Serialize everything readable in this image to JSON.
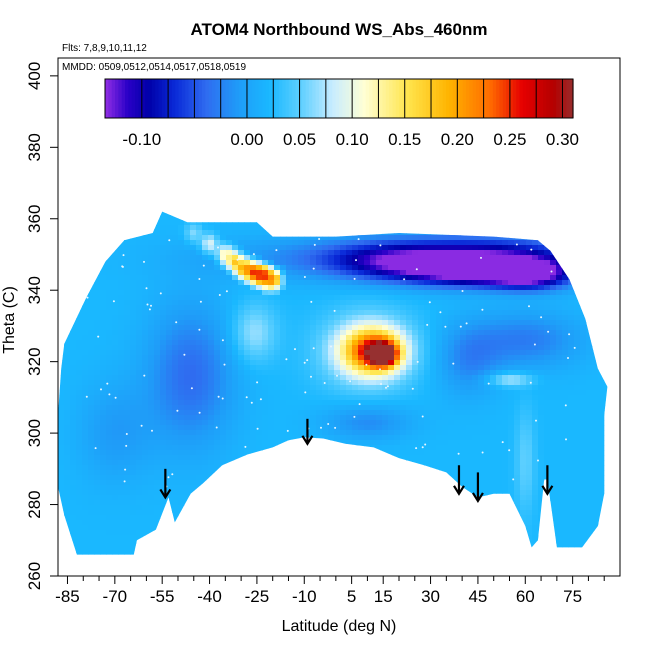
{
  "chart_data": {
    "type": "heatmap",
    "title": "ATOM4 Northbound WS_Abs_460nm",
    "annotations": {
      "flights": "Flts: 7,8,9,10,11,12",
      "dates": "MMDD: 0509,0512,0514,0517,0518,0519"
    },
    "xlabel": "Latitude (deg N)",
    "ylabel": "Theta (C)",
    "xlim": [
      -88,
      90
    ],
    "ylim": [
      260,
      405
    ],
    "x_ticks": [
      -85,
      -70,
      -55,
      -40,
      -25,
      -10,
      5,
      15,
      30,
      45,
      60,
      75
    ],
    "x_minor_ticks": [
      -80,
      -75,
      -65,
      -60,
      -50,
      -45,
      -35,
      -30,
      -20,
      -15,
      -5,
      0,
      10,
      20,
      25,
      35,
      40,
      50,
      55,
      65,
      70,
      80,
      85
    ],
    "y_ticks": [
      260,
      280,
      300,
      320,
      340,
      360,
      380,
      400
    ],
    "grid": false,
    "colorbar": {
      "range": [
        -0.135,
        0.31
      ],
      "ticks": [
        -0.1,
        0.0,
        0.05,
        0.1,
        0.15,
        0.2,
        0.25,
        0.3
      ],
      "tick_labels": [
        "-0.10",
        "0.00",
        "0.05",
        "0.10",
        "0.15",
        "0.20",
        "0.25",
        "0.30"
      ],
      "stops": [
        {
          "v": -0.135,
          "color": "#8a2be2"
        },
        {
          "v": -0.115,
          "color": "#2a00c8"
        },
        {
          "v": -0.095,
          "color": "#0000a8"
        },
        {
          "v": -0.07,
          "color": "#0a2ad8"
        },
        {
          "v": -0.04,
          "color": "#2f6cf0"
        },
        {
          "v": -0.01,
          "color": "#1f9cf8"
        },
        {
          "v": 0.02,
          "color": "#1ab8ff"
        },
        {
          "v": 0.05,
          "color": "#5fd0ff"
        },
        {
          "v": 0.08,
          "color": "#c8ecff"
        },
        {
          "v": 0.11,
          "color": "#ffffd4"
        },
        {
          "v": 0.15,
          "color": "#ffe650"
        },
        {
          "v": 0.19,
          "color": "#ffb400"
        },
        {
          "v": 0.23,
          "color": "#ff6a00"
        },
        {
          "v": 0.26,
          "color": "#e60000"
        },
        {
          "v": 0.29,
          "color": "#b40000"
        },
        {
          "v": 0.31,
          "color": "#963030"
        }
      ]
    },
    "field": {
      "background_value": 0.02,
      "anomalies": [
        {
          "lat": -46,
          "theta": 316,
          "value": -0.04,
          "rlat": 14,
          "rtheta": 20
        },
        {
          "lat": -70,
          "theta": 300,
          "value": -0.01,
          "rlat": 12,
          "rtheta": 14
        },
        {
          "lat": 25,
          "theta": 349,
          "value": -0.05,
          "rlat": 55,
          "rtheta": 6
        },
        {
          "lat": 50,
          "theta": 349,
          "value": -0.06,
          "rlat": 28,
          "rtheta": 6
        },
        {
          "lat": 45,
          "theta": 345,
          "value": -0.1,
          "rlat": 22,
          "rtheta": 4
        },
        {
          "lat": 62,
          "theta": 344,
          "value": -0.08,
          "rlat": 12,
          "rtheta": 4
        },
        {
          "lat": 18,
          "theta": 348,
          "value": -0.05,
          "rlat": 20,
          "rtheta": 5
        },
        {
          "lat": 60,
          "theta": 326,
          "value": -0.03,
          "rlat": 18,
          "rtheta": 8
        },
        {
          "lat": 42,
          "theta": 320,
          "value": -0.02,
          "rlat": 10,
          "rtheta": 10
        },
        {
          "lat": 10,
          "theta": 303,
          "value": -0.02,
          "rlat": 14,
          "rtheta": 5
        },
        {
          "lat": -26,
          "theta": 328,
          "value": 0.07,
          "rlat": 7,
          "rtheta": 8
        },
        {
          "lat": 15,
          "theta": 322,
          "value": 0.28,
          "rlat": 4,
          "rtheta": 3
        },
        {
          "lat": 12,
          "theta": 323,
          "value": 0.2,
          "rlat": 9,
          "rtheta": 6
        },
        {
          "lat": 10,
          "theta": 323,
          "value": 0.1,
          "rlat": 14,
          "rtheta": 10
        },
        {
          "lat": 55,
          "theta": 315,
          "value": 0.08,
          "rlat": 7,
          "rtheta": 2
        },
        {
          "lat": 60,
          "theta": 292,
          "value": 0.05,
          "rlat": 3,
          "rtheta": 14
        }
      ],
      "streak": [
        {
          "lat": -45,
          "theta": 356,
          "value": 0.06
        },
        {
          "lat": -40,
          "theta": 353,
          "value": 0.09
        },
        {
          "lat": -35,
          "theta": 350,
          "value": 0.12
        },
        {
          "lat": -32,
          "theta": 348,
          "value": 0.17
        },
        {
          "lat": -29,
          "theta": 346,
          "value": 0.2
        },
        {
          "lat": -26,
          "theta": 345,
          "value": 0.24
        },
        {
          "lat": -23,
          "theta": 344,
          "value": 0.28
        },
        {
          "lat": -20,
          "theta": 343,
          "value": 0.22
        }
      ],
      "streak_width_deg": 3,
      "streak_height_theta": 3
    },
    "coverage_top": [
      [
        -79,
        338
      ],
      [
        -73,
        348
      ],
      [
        -67,
        354
      ],
      [
        -58,
        356
      ],
      [
        -55,
        362
      ],
      [
        -47,
        359
      ],
      [
        -25,
        359
      ],
      [
        -20,
        355
      ],
      [
        0,
        355
      ],
      [
        20,
        356
      ],
      [
        50,
        355
      ],
      [
        64,
        354
      ],
      [
        68,
        351
      ],
      [
        74,
        343
      ],
      [
        79,
        332
      ],
      [
        83,
        318
      ],
      [
        86,
        313
      ],
      [
        85,
        305
      ]
    ],
    "coverage_bottom": [
      [
        85,
        283
      ],
      [
        83,
        274
      ],
      [
        78,
        268
      ],
      [
        73,
        268
      ],
      [
        70,
        268
      ],
      [
        67,
        287
      ],
      [
        66,
        287
      ],
      [
        64,
        270
      ],
      [
        62,
        268
      ],
      [
        60,
        274
      ],
      [
        55,
        283
      ],
      [
        50,
        283
      ],
      [
        45,
        282
      ],
      [
        40,
        285
      ],
      [
        35,
        289
      ],
      [
        28,
        291
      ],
      [
        20,
        293
      ],
      [
        12,
        296
      ],
      [
        3,
        297
      ],
      [
        -4,
        298.5
      ],
      [
        -10,
        298.8
      ],
      [
        -15,
        298
      ],
      [
        -20,
        296
      ],
      [
        -28,
        294
      ],
      [
        -36,
        291
      ],
      [
        -42,
        286
      ],
      [
        -46,
        283
      ],
      [
        -51,
        275
      ],
      [
        -53,
        282
      ],
      [
        -57,
        273
      ],
      [
        -63,
        270
      ],
      [
        -64,
        266
      ],
      [
        -82,
        266
      ],
      [
        -86,
        277
      ],
      [
        -88,
        285
      ],
      [
        -88,
        305
      ],
      [
        -87,
        318
      ],
      [
        -86,
        325
      ]
    ],
    "arrows": [
      {
        "lat": -54,
        "theta_top": 290,
        "theta_tip": 282
      },
      {
        "lat": -9,
        "theta_top": 304,
        "theta_tip": 297
      },
      {
        "lat": 39,
        "theta_top": 291,
        "theta_tip": 283
      },
      {
        "lat": 45,
        "theta_top": 289,
        "theta_tip": 281
      },
      {
        "lat": 67,
        "theta_top": 291,
        "theta_tip": 283
      }
    ]
  }
}
